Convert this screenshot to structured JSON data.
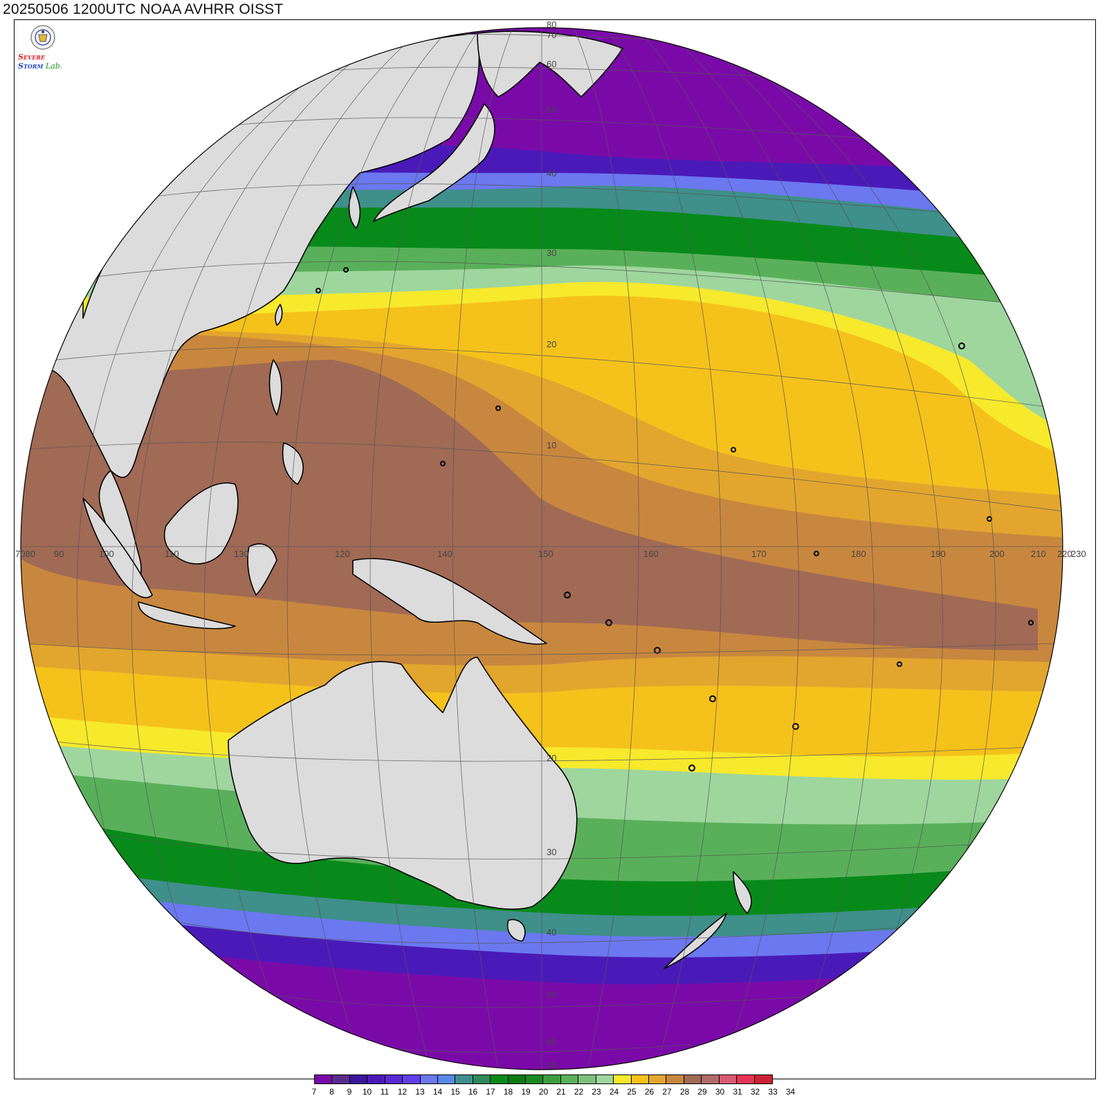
{
  "title": "20250506 1200UTC NOAA AVHRR OISST",
  "logo": {
    "emblem": "university-seal-icon",
    "text_s1": "S",
    "text_s1_rest": "EVERE",
    "text_s2": "S",
    "text_s2_rest": "TORM",
    "text_lab": "Lab."
  },
  "colorbar": {
    "colors": [
      "#7a0aa8",
      "#5b2c8f",
      "#3a169c",
      "#4a1ab8",
      "#5a2ad0",
      "#6040e6",
      "#6b78f0",
      "#5a88e8",
      "#3f8f8a",
      "#2e8a5a",
      "#088a1a",
      "#0a7a10",
      "#1a8a20",
      "#3e9e3e",
      "#5ab05a",
      "#7cc07c",
      "#9ed69e",
      "#f7e92c",
      "#f5c21c",
      "#e2a62e",
      "#c8873e",
      "#a06a55",
      "#b26a6a",
      "#d85a72",
      "#e63456",
      "#cc2233"
    ],
    "labels": [
      "7",
      "8",
      "9",
      "10",
      "11",
      "12",
      "13",
      "14",
      "15",
      "16",
      "17",
      "18",
      "19",
      "20",
      "21",
      "22",
      "23",
      "24",
      "25",
      "26",
      "27",
      "28",
      "29",
      "30",
      "31",
      "32",
      "33",
      "34"
    ]
  },
  "grid_labels": {
    "longitudes": [
      "7080",
      "90",
      "100",
      "110",
      "120",
      "130",
      "140",
      "150",
      "160",
      "170",
      "180",
      "190",
      "200",
      "210",
      "220",
      "230"
    ],
    "latitudes_north": [
      "80",
      "70",
      "60",
      "50",
      "40",
      "30",
      "20",
      "10"
    ],
    "latitudes_south": [
      "20",
      "30",
      "40",
      "50",
      "60",
      "70"
    ]
  }
}
